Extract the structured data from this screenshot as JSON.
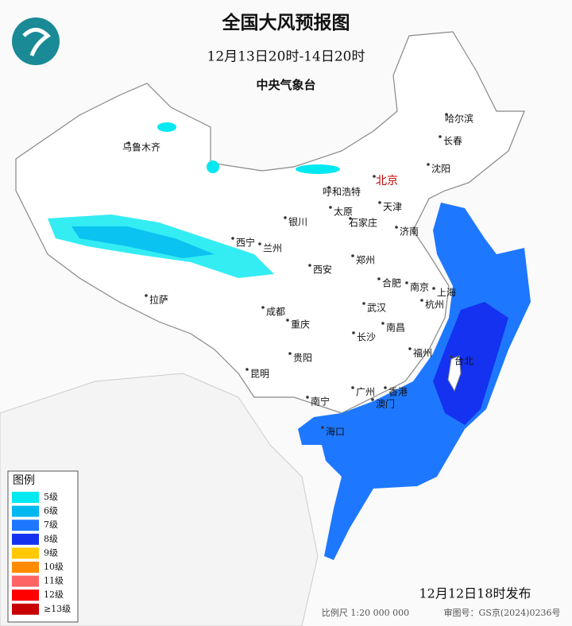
{
  "header": {
    "title": "全国大风预报图",
    "period": "12月13日20时-14日20时",
    "agency": "中央气象台"
  },
  "cities": [
    {
      "label": "哈尔滨"
    },
    {
      "label": "长春"
    },
    {
      "label": "沈阳"
    },
    {
      "label": "乌鲁木齐"
    },
    {
      "label": "呼和浩特"
    },
    {
      "label": "北京"
    },
    {
      "label": "天津"
    },
    {
      "label": "太原"
    },
    {
      "label": "石家庄"
    },
    {
      "label": "银川"
    },
    {
      "label": "济南"
    },
    {
      "label": "西宁"
    },
    {
      "label": "兰州"
    },
    {
      "label": "郑州"
    },
    {
      "label": "西安"
    },
    {
      "label": "合肥"
    },
    {
      "label": "南京"
    },
    {
      "label": "上海"
    },
    {
      "label": "拉萨"
    },
    {
      "label": "成都"
    },
    {
      "label": "武汉"
    },
    {
      "label": "杭州"
    },
    {
      "label": "重庆"
    },
    {
      "label": "南昌"
    },
    {
      "label": "长沙"
    },
    {
      "label": "贵阳"
    },
    {
      "label": "福州"
    },
    {
      "label": "台北"
    },
    {
      "label": "昆明"
    },
    {
      "label": "广州"
    },
    {
      "label": "香港"
    },
    {
      "label": "南宁"
    },
    {
      "label": "澳门"
    },
    {
      "label": "海口"
    }
  ],
  "legend": {
    "title": "图例",
    "items": [
      {
        "label": "5级",
        "color": "#00e8f0"
      },
      {
        "label": "6级",
        "color": "#00b8f0"
      },
      {
        "label": "7级",
        "color": "#1e78ff"
      },
      {
        "label": "8级",
        "color": "#1432f0"
      },
      {
        "label": "9级",
        "color": "#ffc800"
      },
      {
        "label": "10级",
        "color": "#ff8c00"
      },
      {
        "label": "11级",
        "color": "#ff6464"
      },
      {
        "label": "12级",
        "color": "#ff0000"
      },
      {
        "label": "≥13级",
        "color": "#c80000"
      }
    ]
  },
  "footer": {
    "issued": "12月12日18时发布",
    "scale": "比例尺 1:20 000 000",
    "map_number": "审图号：GS京(2024)0236号"
  }
}
